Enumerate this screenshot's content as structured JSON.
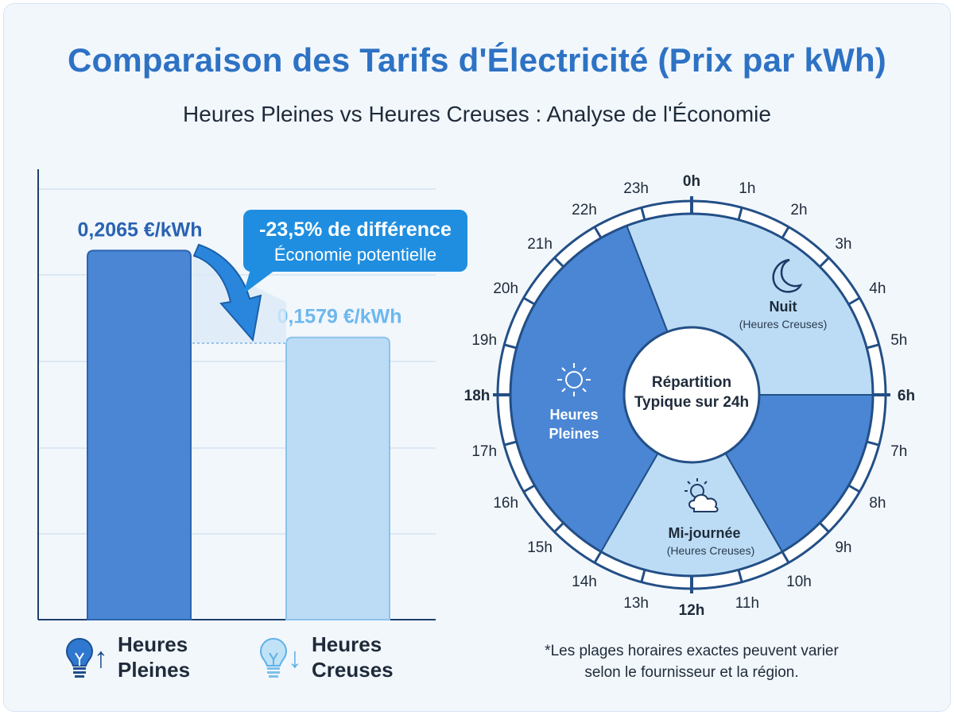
{
  "title": "Comparaison des Tarifs d'Électricité (Prix par kWh)",
  "subtitle": "Heures Pleines vs Heures Creuses : Analyse de l'Économie",
  "chart_data": [
    {
      "type": "bar",
      "categories": [
        "Heures Pleines",
        "Heures Creuses"
      ],
      "values": [
        0.2065,
        0.1579
      ],
      "value_labels": [
        "0,2065 €/kWh",
        "0,1579 €/kWh"
      ],
      "legend": {
        "pleines": {
          "line1": "Heures",
          "line2": "Pleines",
          "arrow": "↑"
        },
        "creuses": {
          "line1": "Heures",
          "line2": "Creuses",
          "arrow": "↓"
        }
      },
      "callout": {
        "line1": "-23,5% de différence",
        "line2": "Économie potentielle"
      },
      "colors": {
        "pleines": "#4a86d4",
        "creuses": "#bcdcf5",
        "callout": "#1f8ee0"
      }
    },
    {
      "type": "pie",
      "center_label": {
        "line1": "Répartition",
        "line2": "Typique sur 24h"
      },
      "hour_labels": [
        "0h",
        "1h",
        "2h",
        "3h",
        "4h",
        "5h",
        "6h",
        "7h",
        "8h",
        "9h",
        "10h",
        "11h",
        "12h",
        "13h",
        "14h",
        "15h",
        "16h",
        "17h",
        "18h",
        "19h",
        "20h",
        "21h",
        "22h",
        "23h"
      ],
      "bold_hours": [
        0,
        6,
        12,
        18
      ],
      "segments": [
        {
          "name": "Nuit",
          "sublabel": "(Heures Creuses)",
          "start_hour": 22.6,
          "end_hour": 6,
          "type": "creuses",
          "icon": "moon-icon"
        },
        {
          "name": "",
          "sublabel": "",
          "start_hour": 6,
          "end_hour": 10,
          "type": "pleines"
        },
        {
          "name": "Mi-journée",
          "sublabel": "(Heures Creuses)",
          "start_hour": 10,
          "end_hour": 14,
          "type": "creuses",
          "icon": "cloud-sun-icon"
        },
        {
          "name": "Heures Pleines",
          "sublabel": "",
          "start_hour": 14,
          "end_hour": 22.6,
          "type": "pleines",
          "icon": "sun-icon"
        }
      ],
      "colors": {
        "pleines": "#4a86d4",
        "creuses": "#bcdcf5",
        "ring": "#234f86"
      }
    }
  ],
  "footnote": {
    "line1": "*Les plages horaires exactes peuvent varier",
    "line2": "selon le fournisseur et la région."
  }
}
